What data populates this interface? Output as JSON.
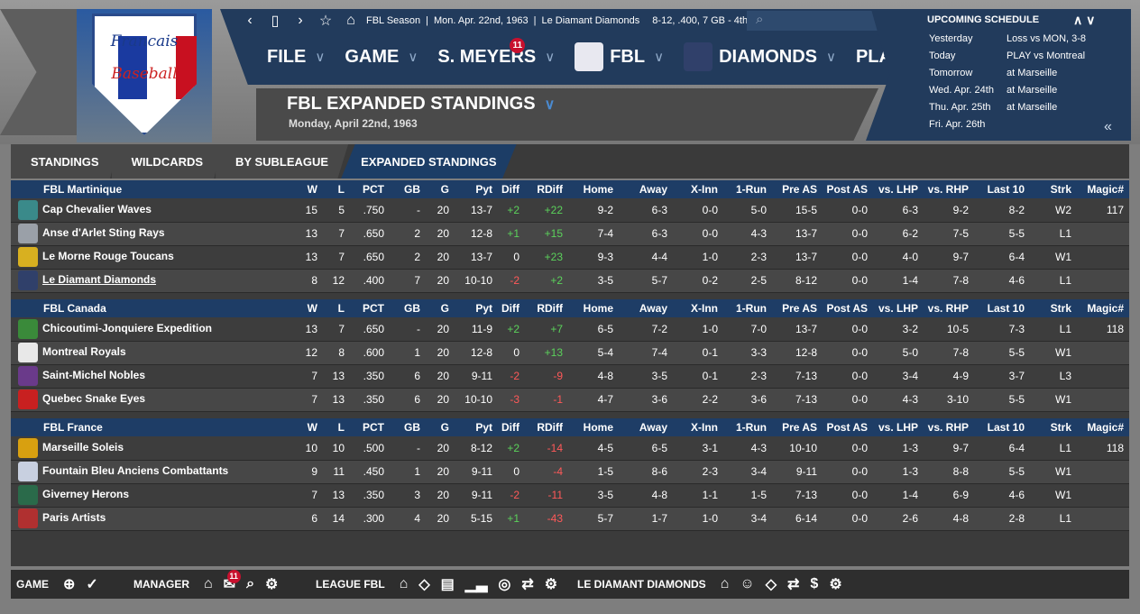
{
  "header": {
    "info": [
      "FBL Season",
      "Mon. Apr. 22nd, 1963",
      "Le Diamant Diamonds",
      "8-12, .400, 7 GB - 4th"
    ],
    "menu": [
      "FILE",
      "GAME",
      "S. MEYERS",
      "FBL",
      "DIAMONDS",
      "PLAY"
    ],
    "badge_count": "11",
    "title": "FBL EXPANDED STANDINGS",
    "subtitle": "Monday, April 22nd, 1963"
  },
  "schedule": {
    "heading": "UPCOMING SCHEDULE",
    "rows": [
      {
        "day": "Yesterday",
        "text": "Loss vs MON, 3-8"
      },
      {
        "day": "Today",
        "text": "PLAY vs Montreal"
      },
      {
        "day": "Tomorrow",
        "text": "at Marseille"
      },
      {
        "day": "Wed. Apr. 24th",
        "text": "at Marseille"
      },
      {
        "day": "Thu. Apr. 25th",
        "text": "at Marseille"
      },
      {
        "day": "Fri. Apr. 26th",
        "text": ""
      }
    ]
  },
  "tabs": [
    "STANDINGS",
    "WILDCARDS",
    "BY SUBLEAGUE",
    "EXPANDED STANDINGS"
  ],
  "columns": [
    "W",
    "L",
    "PCT",
    "GB",
    "G",
    "Pyt",
    "Diff",
    "RDiff",
    "Home",
    "Away",
    "X-Inn",
    "1-Run",
    "Pre AS",
    "Post AS",
    "vs. LHP",
    "vs. RHP",
    "Last 10",
    "Strk",
    "Magic#"
  ],
  "divisions": [
    {
      "name": "FBL Martinique",
      "teams": [
        {
          "name": "Cap Chevalier Waves",
          "color": "#3a8a8a",
          "v": [
            "15",
            "5",
            ".750",
            "-",
            "20",
            "13-7",
            "+2",
            "+22",
            "9-2",
            "6-3",
            "0-0",
            "5-0",
            "15-5",
            "0-0",
            "6-3",
            "9-2",
            "8-2",
            "W2",
            "117"
          ]
        },
        {
          "name": "Anse d'Arlet Sting Rays",
          "color": "#9aa0a8",
          "v": [
            "13",
            "7",
            ".650",
            "2",
            "20",
            "12-8",
            "+1",
            "+15",
            "7-4",
            "6-3",
            "0-0",
            "4-3",
            "13-7",
            "0-0",
            "6-2",
            "7-5",
            "5-5",
            "L1",
            ""
          ]
        },
        {
          "name": "Le Morne Rouge Toucans",
          "color": "#d8b020",
          "v": [
            "13",
            "7",
            ".650",
            "2",
            "20",
            "13-7",
            "0",
            "+23",
            "9-3",
            "4-4",
            "1-0",
            "2-3",
            "13-7",
            "0-0",
            "4-0",
            "9-7",
            "6-4",
            "W1",
            ""
          ]
        },
        {
          "name": "Le Diamant Diamonds",
          "color": "#30406a",
          "v": [
            "8",
            "12",
            ".400",
            "7",
            "20",
            "10-10",
            "-2",
            "+2",
            "3-5",
            "5-7",
            "0-2",
            "2-5",
            "8-12",
            "0-0",
            "1-4",
            "7-8",
            "4-6",
            "L1",
            ""
          ]
        }
      ]
    },
    {
      "name": "FBL Canada",
      "teams": [
        {
          "name": "Chicoutimi-Jonquiere Expedition",
          "color": "#3a8a3a",
          "v": [
            "13",
            "7",
            ".650",
            "-",
            "20",
            "11-9",
            "+2",
            "+7",
            "6-5",
            "7-2",
            "1-0",
            "7-0",
            "13-7",
            "0-0",
            "3-2",
            "10-5",
            "7-3",
            "L1",
            "118"
          ]
        },
        {
          "name": "Montreal Royals",
          "color": "#e8e8e8",
          "v": [
            "12",
            "8",
            ".600",
            "1",
            "20",
            "12-8",
            "0",
            "+13",
            "5-4",
            "7-4",
            "0-1",
            "3-3",
            "12-8",
            "0-0",
            "5-0",
            "7-8",
            "5-5",
            "W1",
            ""
          ]
        },
        {
          "name": "Saint-Michel Nobles",
          "color": "#6a3a8a",
          "v": [
            "7",
            "13",
            ".350",
            "6",
            "20",
            "9-11",
            "-2",
            "-9",
            "4-8",
            "3-5",
            "0-1",
            "2-3",
            "7-13",
            "0-0",
            "3-4",
            "4-9",
            "3-7",
            "L3",
            ""
          ]
        },
        {
          "name": "Quebec Snake Eyes",
          "color": "#c82020",
          "v": [
            "7",
            "13",
            ".350",
            "6",
            "20",
            "10-10",
            "-3",
            "-1",
            "4-7",
            "3-6",
            "2-2",
            "3-6",
            "7-13",
            "0-0",
            "4-3",
            "3-10",
            "5-5",
            "W1",
            ""
          ]
        }
      ]
    },
    {
      "name": "FBL France",
      "teams": [
        {
          "name": "Marseille Soleis",
          "color": "#d8a010",
          "v": [
            "10",
            "10",
            ".500",
            "-",
            "20",
            "8-12",
            "+2",
            "-14",
            "4-5",
            "6-5",
            "3-1",
            "4-3",
            "10-10",
            "0-0",
            "1-3",
            "9-7",
            "6-4",
            "L1",
            "118"
          ]
        },
        {
          "name": "Fountain Bleu Anciens Combattants",
          "color": "#c8d0e0",
          "v": [
            "9",
            "11",
            ".450",
            "1",
            "20",
            "9-11",
            "0",
            "-4",
            "1-5",
            "8-6",
            "2-3",
            "3-4",
            "9-11",
            "0-0",
            "1-3",
            "8-8",
            "5-5",
            "W1",
            ""
          ]
        },
        {
          "name": "Giverney Herons",
          "color": "#2a6a4a",
          "v": [
            "7",
            "13",
            ".350",
            "3",
            "20",
            "9-11",
            "-2",
            "-11",
            "3-5",
            "4-8",
            "1-1",
            "1-5",
            "7-13",
            "0-0",
            "1-4",
            "6-9",
            "4-6",
            "W1",
            ""
          ]
        },
        {
          "name": "Paris Artists",
          "color": "#b03030",
          "v": [
            "6",
            "14",
            ".300",
            "4",
            "20",
            "5-15",
            "+1",
            "-43",
            "5-7",
            "1-7",
            "1-0",
            "3-4",
            "6-14",
            "0-0",
            "2-6",
            "4-8",
            "2-8",
            "L1",
            ""
          ]
        }
      ]
    }
  ],
  "footer": {
    "game": "GAME",
    "manager": "MANAGER",
    "league": "LEAGUE FBL",
    "team": "LE DIAMANT DIAMONDS",
    "badge": "11"
  }
}
